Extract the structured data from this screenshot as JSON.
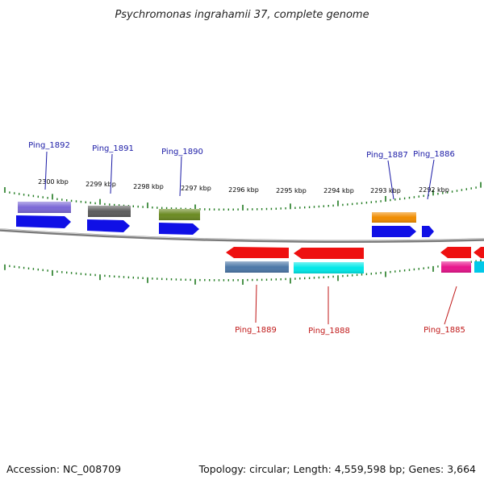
{
  "title": "Psychromonas ingrahamii 37, complete genome",
  "footer": {
    "accession": "Accession: NC_008709",
    "summary": "Topology: circular; Length: 4,559,598 bp; Genes: 3,664"
  },
  "colors": {
    "forward_cds": "#1010e6",
    "reverse_cds": "#ee1010",
    "forward_label": "#1a1aa6",
    "reverse_label": "#c01818",
    "scale_ticks": "#1f7a1f",
    "backbone": "#7a7a7a"
  },
  "scale_labels": [
    "2300 kbp",
    "2299 kbp",
    "2298 kbp",
    "2297 kbp",
    "2296 kbp",
    "2295 kbp",
    "2294 kbp",
    "2293 kbp",
    "2292 kbp"
  ],
  "genes_forward": [
    {
      "label": "Ping_1892",
      "feature_color": "#7b68d6"
    },
    {
      "label": "Ping_1891",
      "feature_color": "#5c5c5c"
    },
    {
      "label": "Ping_1890",
      "feature_color": "#6b8a22"
    },
    {
      "label": "Ping_1887",
      "feature_color": "#f08c00"
    },
    {
      "label": "Ping_1886",
      "feature_color": null
    }
  ],
  "genes_reverse": [
    {
      "label": "Ping_1889",
      "feature_color": "#4d78a8"
    },
    {
      "label": "Ping_1888",
      "feature_color": "#00e8e8"
    },
    {
      "label": "Ping_1885",
      "feature_color": "#e8158c"
    }
  ]
}
